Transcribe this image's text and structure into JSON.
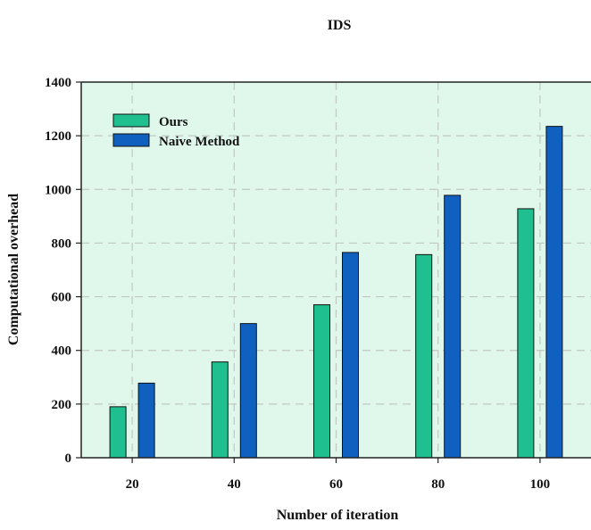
{
  "chart_data": {
    "type": "bar",
    "title": "IDS",
    "xlabel": "Number of iteration",
    "ylabel": "Computational overhead",
    "categories": [
      "20",
      "40",
      "60",
      "80",
      "100"
    ],
    "series": [
      {
        "name": "Ours",
        "values": [
          190,
          357,
          570,
          757,
          928
        ],
        "color": "#1fbf8f"
      },
      {
        "name": "Naive Method",
        "values": [
          278,
          500,
          765,
          978,
          1235
        ],
        "color": "#1060c0"
      }
    ],
    "ylim": [
      0,
      1400
    ],
    "yticks": [
      "0",
      "200",
      "400",
      "600",
      "800",
      "1000",
      "1200",
      "1400"
    ],
    "grid": true,
    "legend_position": "top-left",
    "plot_background": "#e0f8ec",
    "grid_color": "#c0c8c4"
  }
}
